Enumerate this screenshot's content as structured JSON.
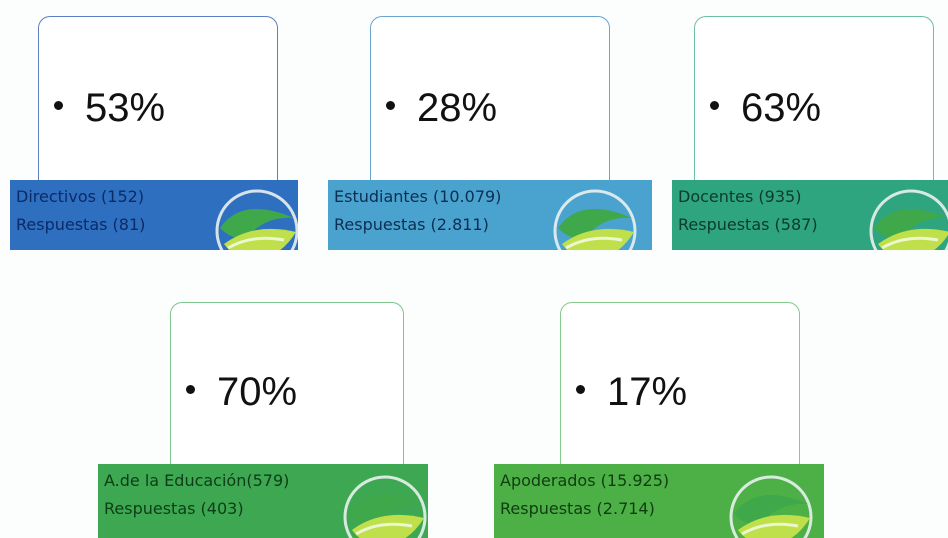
{
  "groups": [
    {
      "id": "directivos",
      "percent": "53%",
      "label": "Directivos (152)",
      "responses": "Respuestas (81)",
      "border_color": "#5b7fc4",
      "band_color": "#2f6fc0",
      "text_color": "#0b2a66",
      "logo": "leaf-globe-icon"
    },
    {
      "id": "estudiantes",
      "percent": "28%",
      "label": "Estudiantes (10.079)",
      "responses": "Respuestas (2.811)",
      "border_color": "#6aa4cf",
      "band_color": "#4aa2cf",
      "text_color": "#0c2f52",
      "logo": "leaf-globe-icon"
    },
    {
      "id": "docentes",
      "percent": "63%",
      "label": "Docentes (935)",
      "responses": "Respuestas (587)",
      "border_color": "#6cbf9f",
      "band_color": "#2fa57f",
      "text_color": "#0c3a2c",
      "logo": "leaf-globe-icon"
    },
    {
      "id": "asistentes",
      "percent": "70%",
      "label": "A.de la Educación(579)",
      "responses": "Respuestas (403)",
      "border_color": "#7fc58e",
      "band_color": "#3da851",
      "text_color": "#0d3d16",
      "logo": "leaf-globe-icon"
    },
    {
      "id": "apoderados",
      "percent": "17%",
      "label": "Apoderados (15.925)",
      "responses": "Respuestas (2.714)",
      "border_color": "#86c98a",
      "band_color": "#4cb046",
      "text_color": "#0f3d10",
      "logo": "leaf-globe-icon"
    }
  ]
}
